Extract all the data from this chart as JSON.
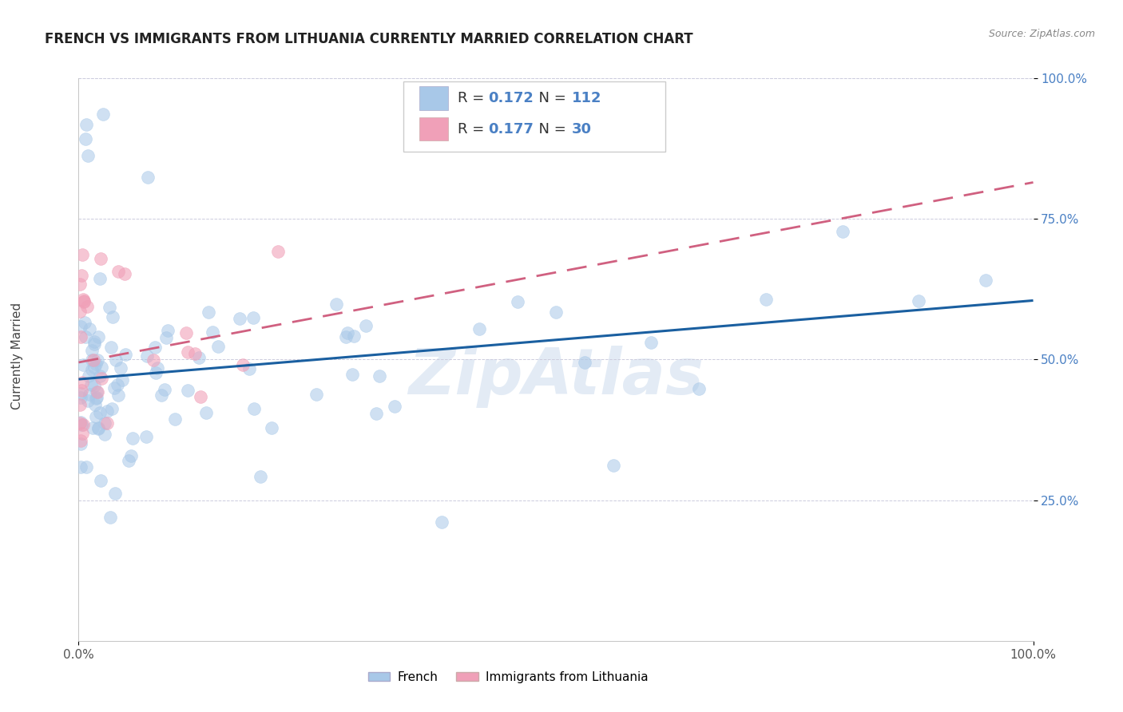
{
  "title": "FRENCH VS IMMIGRANTS FROM LITHUANIA CURRENTLY MARRIED CORRELATION CHART",
  "source": "Source: ZipAtlas.com",
  "ylabel": "Currently Married",
  "watermark": "ZipAtlas",
  "legend_labels": [
    "French",
    "Immigrants from Lithuania"
  ],
  "r_french": 0.172,
  "n_french": 112,
  "r_lithuania": 0.177,
  "n_lithuania": 30,
  "french_color": "#a8c8e8",
  "lithuania_color": "#f0a0b8",
  "french_line_color": "#1a5fa0",
  "lithuania_line_color": "#d06080",
  "background_color": "#ffffff",
  "grid_color": "#ccccdd",
  "xmin": 0.0,
  "xmax": 1.0,
  "ymin": 0.0,
  "ymax": 1.0,
  "ytick_vals": [
    0.25,
    0.5,
    0.75,
    1.0
  ],
  "ytick_labels": [
    "25.0%",
    "50.0%",
    "75.0%",
    "100.0%"
  ],
  "french_trend_x0": 0.0,
  "french_trend_y0": 0.465,
  "french_trend_x1": 1.0,
  "french_trend_y1": 0.605,
  "lith_trend_x0": 0.0,
  "lith_trend_y0": 0.495,
  "lith_trend_x1": 1.0,
  "lith_trend_y1": 0.815,
  "title_fontsize": 12,
  "tick_fontsize": 11,
  "legend_fontsize": 13,
  "source_fontsize": 9,
  "ylabel_fontsize": 11
}
